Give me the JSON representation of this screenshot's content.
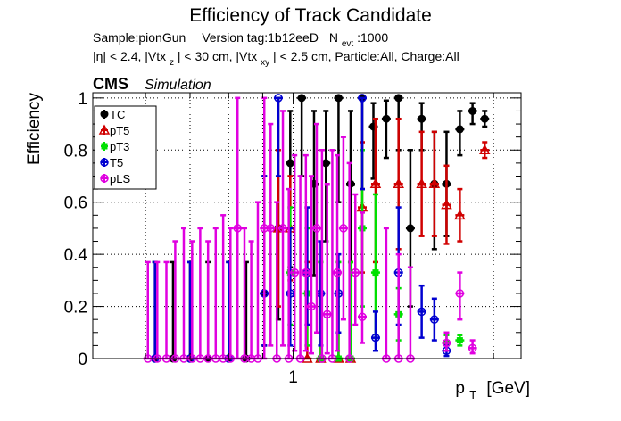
{
  "chart_data": {
    "type": "scatter",
    "title": "Efficiency of Track Candidate",
    "subtitle_line1": {
      "sample": "Sample:pionGun",
      "version": "Version tag:1b12eeD",
      "nevt_label": "N",
      "nevt_sub": "evt",
      "nevt_value": ":1000"
    },
    "subtitle_line2": {
      "part1": "|η| < 2.4, |Vtx",
      "sub1": "z",
      "part2": "| < 30 cm, |Vtx",
      "sub2": "xy",
      "part3": "| < 2.5 cm, Particle:All, Charge:All"
    },
    "cms_label": "CMS",
    "simulation_label": "Simulation",
    "xlabel_main": "p",
    "xlabel_sub": "T",
    "xlabel_unit": "[GeV]",
    "ylabel": "Efficiency",
    "x_scale": "log",
    "xlim": [
      0.5,
      2.2
    ],
    "ylim": [
      0,
      1.02
    ],
    "x_tick_labels": [
      {
        "value": 1,
        "label": "1"
      }
    ],
    "y_tick_labels": [
      {
        "value": 0,
        "label": "0"
      },
      {
        "value": 0.2,
        "label": "0.2"
      },
      {
        "value": 0.4,
        "label": "0.4"
      },
      {
        "value": 0.6,
        "label": "0.6"
      },
      {
        "value": 0.8,
        "label": "0.8"
      },
      {
        "value": 1,
        "label": "1"
      }
    ],
    "grid": true,
    "legend_position": "top-left",
    "series": [
      {
        "name": "TC",
        "color": "#000000",
        "marker": "filled-circle",
        "points": [
          {
            "x": 0.62,
            "y": 0.0,
            "up": 0.37
          },
          {
            "x": 0.66,
            "y": 0.0,
            "up": 0.37
          },
          {
            "x": 0.7,
            "y": 0.0,
            "up": 0.37
          },
          {
            "x": 0.745,
            "y": 0.0,
            "up": 0.37
          },
          {
            "x": 0.8,
            "y": 0.0,
            "up": 0.37
          },
          {
            "x": 0.85,
            "y": 0.0,
            "up": 0.37
          },
          {
            "x": 0.905,
            "y": 0.25,
            "lo": 0.2,
            "up": 0.45
          },
          {
            "x": 0.95,
            "y": 0.5,
            "lo": 0.35,
            "up": 0.5
          },
          {
            "x": 0.99,
            "y": 0.75,
            "lo": 0.4,
            "up": 0.2
          },
          {
            "x": 1.03,
            "y": 1.0,
            "lo": 0.3
          },
          {
            "x": 1.075,
            "y": 0.67,
            "lo": 0.35,
            "up": 0.28
          },
          {
            "x": 1.12,
            "y": 0.75,
            "lo": 0.3,
            "up": 0.2
          },
          {
            "x": 1.17,
            "y": 1.0,
            "lo": 0.4
          },
          {
            "x": 1.22,
            "y": 0.67,
            "lo": 0.3,
            "up": 0.28
          },
          {
            "x": 1.27,
            "y": 1.0,
            "lo": 0.35
          },
          {
            "x": 1.32,
            "y": 0.89,
            "lo": 0.2,
            "up": 0.09
          },
          {
            "x": 1.38,
            "y": 0.92,
            "lo": 0.15,
            "up": 0.07
          },
          {
            "x": 1.44,
            "y": 1.0,
            "lo": 0.2
          },
          {
            "x": 1.5,
            "y": 0.5,
            "lo": 0.3,
            "up": 0.3
          },
          {
            "x": 1.56,
            "y": 0.92,
            "lo": 0.12,
            "up": 0.06
          },
          {
            "x": 1.63,
            "y": 0.67,
            "lo": 0.25,
            "up": 0.2
          },
          {
            "x": 1.7,
            "y": 0.67,
            "lo": 0.2,
            "up": 0.2
          },
          {
            "x": 1.78,
            "y": 0.88,
            "lo": 0.1,
            "up": 0.07
          },
          {
            "x": 1.86,
            "y": 0.95,
            "lo": 0.05,
            "up": 0.03
          },
          {
            "x": 1.94,
            "y": 0.92,
            "lo": 0.03,
            "up": 0.03
          }
        ]
      },
      {
        "name": "pT5",
        "color": "#d00000",
        "marker": "open-triangle",
        "points": [
          {
            "x": 0.95,
            "y": 0.5,
            "lo": 0.3,
            "up": 0.3
          },
          {
            "x": 0.99,
            "y": 0.5,
            "lo": 0.2,
            "up": 0.2
          },
          {
            "x": 1.05,
            "y": 0.0,
            "up": 0.37
          },
          {
            "x": 1.1,
            "y": 0.0,
            "up": 0.37
          },
          {
            "x": 1.17,
            "y": 0.0,
            "up": 0.37
          },
          {
            "x": 1.22,
            "y": 0.0,
            "up": 0.37
          },
          {
            "x": 1.27,
            "y": 0.58,
            "lo": 0.25,
            "up": 0.25
          },
          {
            "x": 1.33,
            "y": 0.67,
            "lo": 0.3,
            "up": 0.25
          },
          {
            "x": 1.44,
            "y": 0.67,
            "lo": 0.25,
            "up": 0.25
          },
          {
            "x": 1.56,
            "y": 0.67,
            "lo": 0.2,
            "up": 0.2
          },
          {
            "x": 1.63,
            "y": 0.67,
            "lo": 0.2,
            "up": 0.2
          },
          {
            "x": 1.7,
            "y": 0.59,
            "lo": 0.15,
            "up": 0.15
          },
          {
            "x": 1.78,
            "y": 0.55,
            "lo": 0.1,
            "up": 0.1
          },
          {
            "x": 1.94,
            "y": 0.8,
            "lo": 0.03,
            "up": 0.03
          }
        ]
      },
      {
        "name": "pT3",
        "color": "#00e000",
        "marker": "filled-square",
        "points": [
          {
            "x": 0.99,
            "y": 0.33,
            "lo": 0.2,
            "up": 0.25
          },
          {
            "x": 1.05,
            "y": 0.25,
            "lo": 0.2,
            "up": 0.25
          },
          {
            "x": 1.1,
            "y": 0.0,
            "up": 0.37
          },
          {
            "x": 1.17,
            "y": 0.0,
            "up": 0.37
          },
          {
            "x": 1.22,
            "y": 0.0,
            "up": 0.37
          },
          {
            "x": 1.27,
            "y": 0.5,
            "lo": 0.3,
            "up": 0.3
          },
          {
            "x": 1.33,
            "y": 0.33,
            "lo": 0.25,
            "up": 0.3
          },
          {
            "x": 1.44,
            "y": 0.17,
            "lo": 0.1,
            "up": 0.1
          },
          {
            "x": 1.7,
            "y": 0.06,
            "lo": 0.03,
            "up": 0.03
          },
          {
            "x": 1.78,
            "y": 0.07,
            "lo": 0.02,
            "up": 0.02
          }
        ]
      },
      {
        "name": "T5",
        "color": "#0000d0",
        "marker": "open-circle",
        "points": [
          {
            "x": 0.62,
            "y": 0.0,
            "up": 0.37
          },
          {
            "x": 0.7,
            "y": 0.0,
            "up": 0.37
          },
          {
            "x": 0.8,
            "y": 0.0,
            "up": 0.37
          },
          {
            "x": 0.905,
            "y": 0.25,
            "lo": 0.2,
            "up": 0.45
          },
          {
            "x": 0.95,
            "y": 1.0,
            "lo": 0.3
          },
          {
            "x": 0.99,
            "y": 0.25,
            "lo": 0.2,
            "up": 0.25
          },
          {
            "x": 1.05,
            "y": 0.33,
            "lo": 0.2,
            "up": 0.25
          },
          {
            "x": 1.1,
            "y": 0.25,
            "lo": 0.2,
            "up": 0.2
          },
          {
            "x": 1.17,
            "y": 0.25,
            "lo": 0.15,
            "up": 0.15
          },
          {
            "x": 1.27,
            "y": 1.0,
            "lo": 0.35
          },
          {
            "x": 1.33,
            "y": 0.08,
            "lo": 0.05,
            "up": 0.1
          },
          {
            "x": 1.44,
            "y": 0.33,
            "lo": 0.2,
            "up": 0.25
          },
          {
            "x": 1.56,
            "y": 0.18,
            "lo": 0.1,
            "up": 0.1
          },
          {
            "x": 1.63,
            "y": 0.15,
            "lo": 0.08,
            "up": 0.08
          },
          {
            "x": 1.7,
            "y": 0.03,
            "lo": 0.02,
            "up": 0.02
          }
        ]
      },
      {
        "name": "pLS",
        "color": "#e000e0",
        "marker": "open-circle",
        "points": [
          {
            "x": 0.605,
            "y": 0.0,
            "up": 0.37
          },
          {
            "x": 0.625,
            "y": 0.0,
            "up": 0.37
          },
          {
            "x": 0.645,
            "y": 0.0,
            "up": 0.37
          },
          {
            "x": 0.665,
            "y": 0.0,
            "up": 0.45
          },
          {
            "x": 0.685,
            "y": 0.0,
            "up": 0.5
          },
          {
            "x": 0.705,
            "y": 0.0,
            "up": 0.45
          },
          {
            "x": 0.725,
            "y": 0.0,
            "up": 0.5
          },
          {
            "x": 0.745,
            "y": 0.0,
            "up": 0.45
          },
          {
            "x": 0.765,
            "y": 0.0,
            "up": 0.5
          },
          {
            "x": 0.785,
            "y": 0.0,
            "up": 0.55
          },
          {
            "x": 0.805,
            "y": 0.0,
            "up": 0.5
          },
          {
            "x": 0.825,
            "y": 0.5,
            "lo": 0.5,
            "up": 0.5
          },
          {
            "x": 0.845,
            "y": 0.0,
            "up": 0.5
          },
          {
            "x": 0.865,
            "y": 0.0,
            "up": 0.45
          },
          {
            "x": 0.885,
            "y": 0.0,
            "up": 0.6
          },
          {
            "x": 0.905,
            "y": 0.5,
            "lo": 0.5,
            "up": 0.5
          },
          {
            "x": 0.925,
            "y": 0.5,
            "lo": 0.45,
            "up": 0.4
          },
          {
            "x": 0.945,
            "y": 0.0,
            "up": 0.6
          },
          {
            "x": 0.965,
            "y": 0.5,
            "lo": 0.45,
            "up": 0.45
          },
          {
            "x": 0.985,
            "y": 0.0,
            "up": 0.65
          },
          {
            "x": 1.005,
            "y": 0.33,
            "lo": 0.3,
            "up": 0.45
          },
          {
            "x": 1.025,
            "y": 0.0,
            "up": 0.7
          },
          {
            "x": 1.045,
            "y": 0.33,
            "lo": 0.3,
            "up": 0.45
          },
          {
            "x": 1.065,
            "y": 0.2,
            "lo": 0.18,
            "up": 0.5
          },
          {
            "x": 1.085,
            "y": 0.5,
            "lo": 0.4,
            "up": 0.4
          },
          {
            "x": 1.105,
            "y": 0.0,
            "up": 0.8
          },
          {
            "x": 1.125,
            "y": 0.17,
            "lo": 0.15,
            "up": 0.5
          },
          {
            "x": 1.145,
            "y": 0.0,
            "up": 0.8
          },
          {
            "x": 1.165,
            "y": 0.33,
            "lo": 0.3,
            "up": 0.45
          },
          {
            "x": 1.19,
            "y": 0.5,
            "lo": 0.35,
            "up": 0.35
          },
          {
            "x": 1.215,
            "y": 0.0,
            "up": 0.75
          },
          {
            "x": 1.24,
            "y": 0.33,
            "lo": 0.2,
            "up": 0.3
          },
          {
            "x": 1.27,
            "y": 0.16,
            "lo": 0.1,
            "up": 0.4
          },
          {
            "x": 1.38,
            "y": 0.0,
            "up": 0.5
          },
          {
            "x": 1.44,
            "y": 0.0,
            "up": 0.4
          },
          {
            "x": 1.5,
            "y": 0.0,
            "up": 0.35
          },
          {
            "x": 1.7,
            "y": 0.06,
            "lo": 0.03,
            "up": 0.04
          },
          {
            "x": 1.78,
            "y": 0.25,
            "lo": 0.1,
            "up": 0.08
          },
          {
            "x": 1.86,
            "y": 0.04,
            "lo": 0.02,
            "up": 0.03
          }
        ]
      }
    ]
  }
}
